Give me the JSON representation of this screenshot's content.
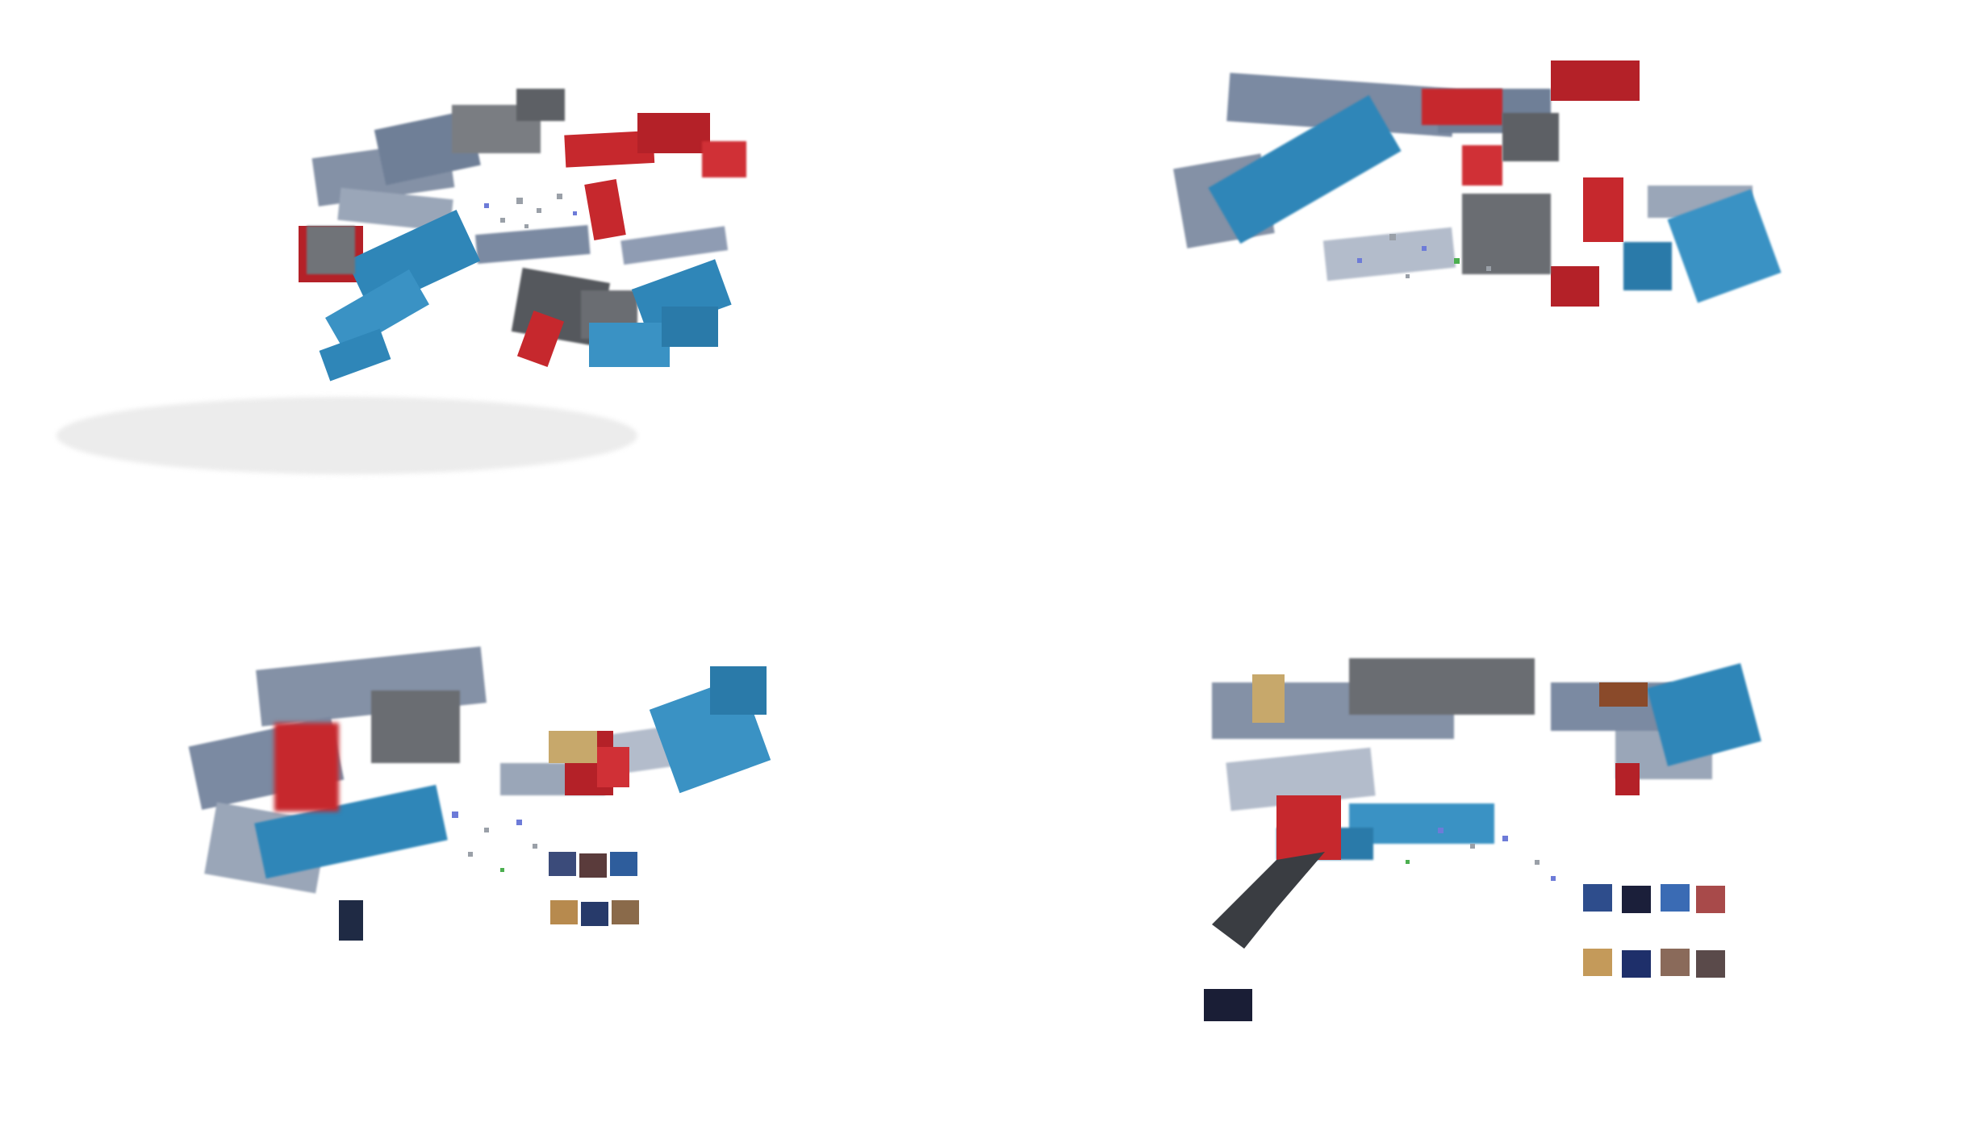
{
  "frames": [
    {
      "id": "frame-1",
      "palette": [
        "#2f86b8",
        "#c6282d",
        "#6f7f97",
        "#8b8f95"
      ]
    },
    {
      "id": "frame-2",
      "palette": [
        "#2f86b8",
        "#c6282d",
        "#6f7f97",
        "#8b8f95"
      ]
    },
    {
      "id": "frame-3",
      "palette": [
        "#2f86b8",
        "#c6282d",
        "#6f7f97",
        "#8b8f95"
      ]
    },
    {
      "id": "frame-4",
      "palette": [
        "#2f86b8",
        "#c6282d",
        "#6f7f97",
        "#8b8f95"
      ]
    }
  ],
  "colors": {
    "background": "#ffffff",
    "blue": "#2f86b8",
    "red": "#c6282d",
    "steel": "#6f7f97",
    "gray": "#8b8f95"
  }
}
